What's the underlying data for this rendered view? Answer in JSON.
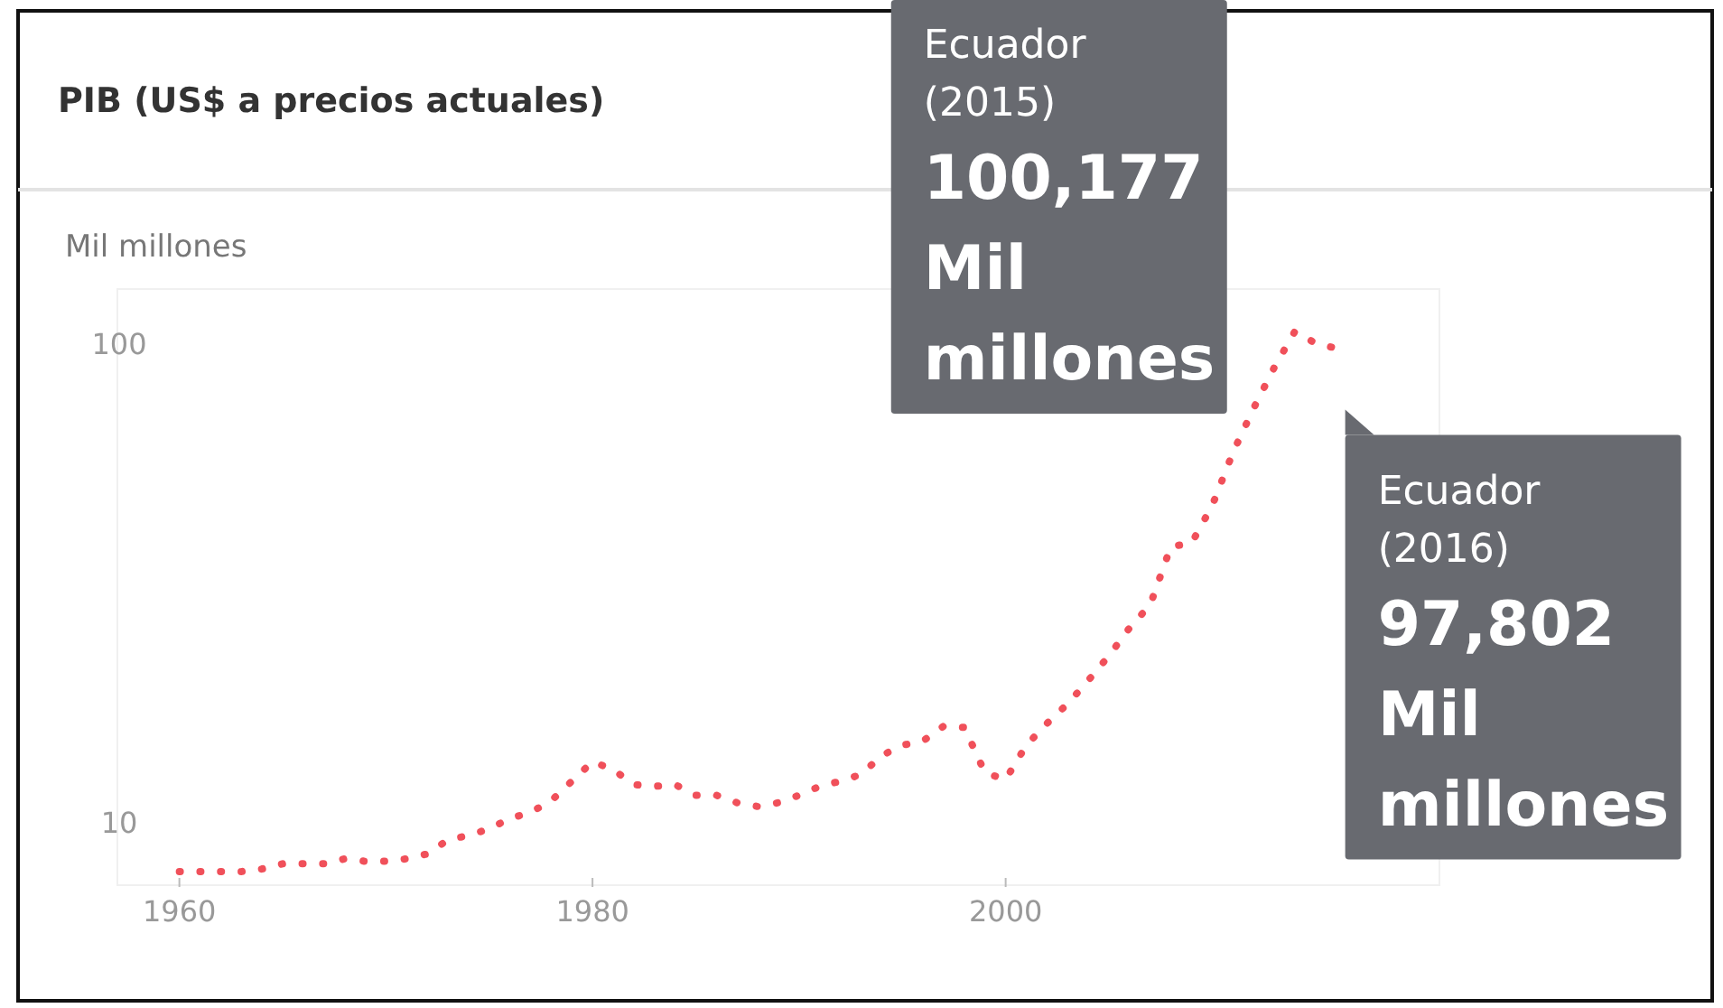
{
  "chart_data": {
    "type": "line",
    "title": "PIB (US$ a precios actuales)",
    "ylabel": "Mil millones",
    "log": "y",
    "grid": false,
    "marker": "none",
    "line_style": "dotted",
    "x": [
      1960,
      1961,
      1962,
      1963,
      1964,
      1965,
      1966,
      1967,
      1968,
      1969,
      1970,
      1971,
      1972,
      1973,
      1974,
      1975,
      1976,
      1977,
      1978,
      1979,
      1980,
      1981,
      1982,
      1983,
      1984,
      1985,
      1986,
      1987,
      1988,
      1989,
      1990,
      1991,
      1992,
      1993,
      1994,
      1995,
      1996,
      1997,
      1998,
      1999,
      2000,
      2001,
      2002,
      2003,
      2004,
      2005,
      2006,
      2007,
      2008,
      2009,
      2010,
      2011,
      2012,
      2013,
      2014,
      2015,
      2016
    ],
    "series": [
      {
        "color": "#f0505a",
        "values": [
          7.9,
          7.9,
          7.9,
          7.9,
          8.0,
          8.2,
          8.2,
          8.2,
          8.4,
          8.3,
          8.3,
          8.4,
          8.6,
          9.2,
          9.4,
          9.7,
          10.2,
          10.5,
          11.1,
          12.2,
          13.4,
          12.9,
          12.0,
          11.9,
          12.0,
          11.4,
          11.4,
          11.0,
          10.8,
          11.0,
          11.4,
          11.9,
          12.2,
          12.6,
          13.8,
          14.5,
          14.8,
          15.9,
          15.8,
          12.7,
          12.3,
          14.5,
          16.1,
          17.7,
          19.8,
          22.3,
          25.5,
          28.5,
          37.7,
          38.3,
          45.9,
          59.2,
          73.2,
          89.1,
          106,
          100.177,
          97.802
        ]
      }
    ],
    "xlim": [
      1957,
      2021
    ],
    "xticks": [
      1960,
      1980,
      2000
    ],
    "ylim": [
      7.4,
      130
    ],
    "yticks": [
      10,
      100
    ],
    "annotations": [
      {
        "text": "Ecuador\n(2015)\n100,177\nMil\nmillones",
        "x": 2015,
        "y": 100.177
      },
      {
        "text": "Ecuador\n(2016)\n97,802\nMil\nmillones",
        "x": 2016,
        "y": 97.802
      }
    ]
  }
}
